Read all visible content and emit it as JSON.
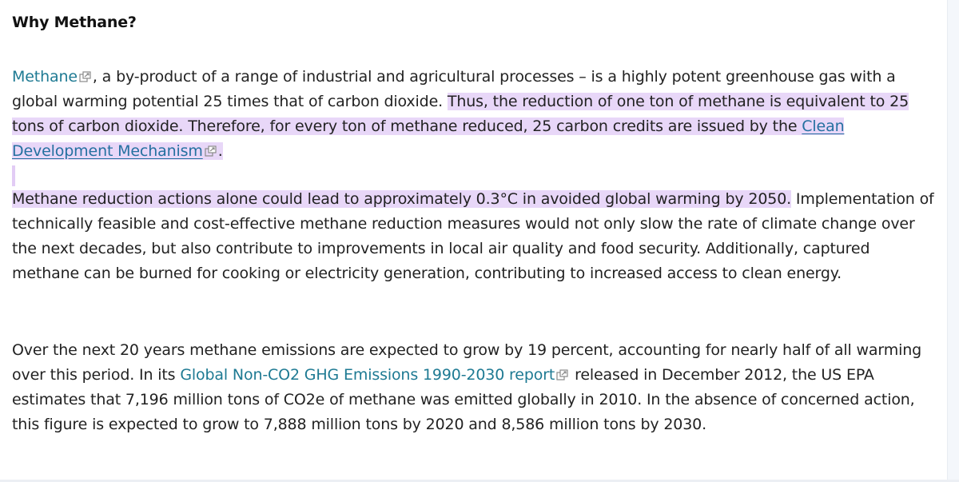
{
  "heading": "Why Methane?",
  "p1": {
    "link_methane": "Methane",
    "text_a": ", a by-product of a range of industrial and agricultural processes – is a highly potent greenhouse gas with a global warming potential 25 times that of carbon dioxide. ",
    "highlight": "Thus, the reduction of one ton of methane is equivalent to 25 tons of carbon dioxide. Therefore, for every ton of methane reduced, 25 carbon credits are issued by the ",
    "link_cdm": "Clean Development Mechanism",
    "end": "."
  },
  "p2": {
    "highlight": "Methane reduction actions alone could lead to approximately 0.3°C in avoided global warming by 2050.",
    "text": " Implementation of technically feasible and cost-effective methane reduction measures would not only slow the rate of climate change over the next decades, but also contribute to improvements in local air quality and food security. Additionally, captured methane can be burned for cooking or electricity generation, contributing to increased access to clean energy."
  },
  "p3": {
    "text_a": "Over the next 20 years methane emissions are expected to grow by 19 percent, accounting for nearly half of all warming over this period. In its ",
    "link_report": "Global Non-CO2 GHG Emissions 1990-2030 report",
    "text_b": " released in December 2012, the US EPA estimates that 7,196 million tons of CO2e of methane was emitted globally in 2010. In the absence of concerned action, this figure is expected to grow to 7,888 million tons by 2020 and 8,586 million tons by 2030."
  },
  "colors": {
    "highlight": "#e8d7f8",
    "teal_link": "#1e7a93",
    "underline_link": "#2470a0"
  },
  "icons": [
    "external-link-icon"
  ]
}
